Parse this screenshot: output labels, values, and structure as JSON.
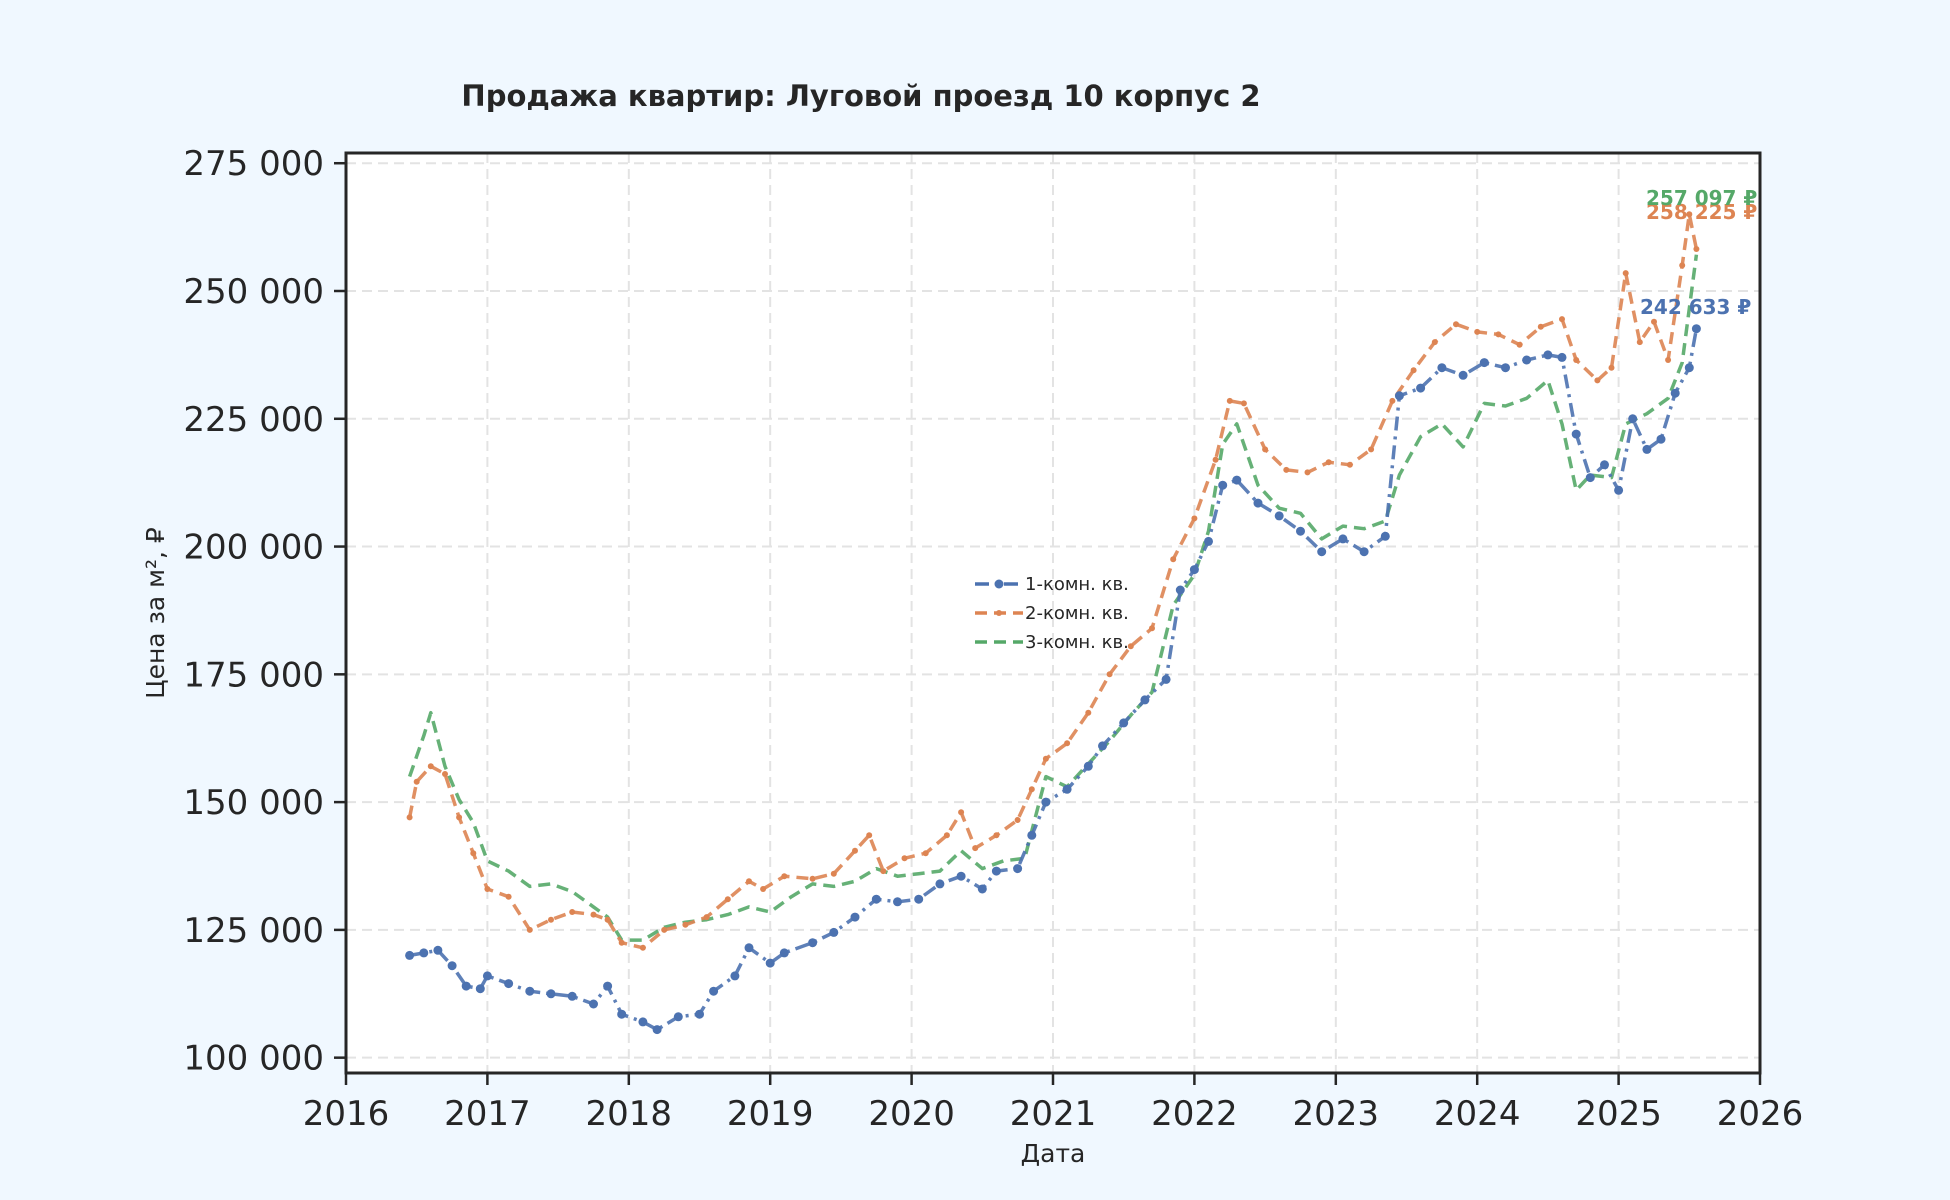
{
  "chart_data": {
    "type": "line",
    "title": "Продажа квартир: Луговой проезд 10 корпус 2",
    "xlabel": "Дата",
    "ylabel": "Цена за м², ₽",
    "xlim": [
      2016,
      2026
    ],
    "ylim": [
      97000,
      277000
    ],
    "x_ticks": [
      2016,
      2017,
      2018,
      2019,
      2020,
      2021,
      2022,
      2023,
      2024,
      2025,
      2026
    ],
    "x_tick_labels": [
      "2016",
      "2017",
      "2018",
      "2019",
      "2020",
      "2021",
      "2022",
      "2023",
      "2024",
      "2025",
      "2026"
    ],
    "y_ticks": [
      100000,
      125000,
      150000,
      175000,
      200000,
      225000,
      250000,
      275000
    ],
    "y_tick_labels": [
      "100 000",
      "125 000",
      "150 000",
      "175 000",
      "200 000",
      "225 000",
      "250 000",
      "275 000"
    ],
    "grid": true,
    "legend_position": "center",
    "series": [
      {
        "name": "1-комн. кв.",
        "color": "#4c72b0",
        "style": "dash-dot",
        "marker": "circle",
        "end_label": "242 633 ₽",
        "points": [
          [
            2016.45,
            120000
          ],
          [
            2016.55,
            120500
          ],
          [
            2016.65,
            121000
          ],
          [
            2016.75,
            118000
          ],
          [
            2016.85,
            114000
          ],
          [
            2016.95,
            113500
          ],
          [
            2017.0,
            116000
          ],
          [
            2017.15,
            114500
          ],
          [
            2017.3,
            113000
          ],
          [
            2017.45,
            112500
          ],
          [
            2017.6,
            112000
          ],
          [
            2017.75,
            110500
          ],
          [
            2017.85,
            114000
          ],
          [
            2017.95,
            108500
          ],
          [
            2018.1,
            107000
          ],
          [
            2018.2,
            105500
          ],
          [
            2018.35,
            108000
          ],
          [
            2018.5,
            108500
          ],
          [
            2018.6,
            113000
          ],
          [
            2018.75,
            116000
          ],
          [
            2018.85,
            121500
          ],
          [
            2019.0,
            118500
          ],
          [
            2019.1,
            120500
          ],
          [
            2019.3,
            122500
          ],
          [
            2019.45,
            124500
          ],
          [
            2019.6,
            127500
          ],
          [
            2019.75,
            131000
          ],
          [
            2019.9,
            130500
          ],
          [
            2020.05,
            131000
          ],
          [
            2020.2,
            134000
          ],
          [
            2020.35,
            135500
          ],
          [
            2020.5,
            133000
          ],
          [
            2020.6,
            136500
          ],
          [
            2020.75,
            137000
          ],
          [
            2020.85,
            143500
          ],
          [
            2020.95,
            150000
          ],
          [
            2021.1,
            152500
          ],
          [
            2021.25,
            157000
          ],
          [
            2021.35,
            161000
          ],
          [
            2021.5,
            165500
          ],
          [
            2021.65,
            170000
          ],
          [
            2021.8,
            174000
          ],
          [
            2021.9,
            191500
          ],
          [
            2022.0,
            195500
          ],
          [
            2022.1,
            201000
          ],
          [
            2022.2,
            212000
          ],
          [
            2022.3,
            213000
          ],
          [
            2022.45,
            208500
          ],
          [
            2022.6,
            206000
          ],
          [
            2022.75,
            203000
          ],
          [
            2022.9,
            199000
          ],
          [
            2023.05,
            201500
          ],
          [
            2023.2,
            199000
          ],
          [
            2023.35,
            202000
          ],
          [
            2023.45,
            229500
          ],
          [
            2023.6,
            231000
          ],
          [
            2023.75,
            235000
          ],
          [
            2023.9,
            233500
          ],
          [
            2024.05,
            236000
          ],
          [
            2024.2,
            235000
          ],
          [
            2024.35,
            236500
          ],
          [
            2024.5,
            237500
          ],
          [
            2024.6,
            237000
          ],
          [
            2024.7,
            222000
          ],
          [
            2024.8,
            213500
          ],
          [
            2024.9,
            216000
          ],
          [
            2025.0,
            211000
          ],
          [
            2025.1,
            225000
          ],
          [
            2025.2,
            219000
          ],
          [
            2025.3,
            221000
          ],
          [
            2025.4,
            230000
          ],
          [
            2025.5,
            235000
          ],
          [
            2025.55,
            242633
          ]
        ]
      },
      {
        "name": "2-комн. кв.",
        "color": "#dd8452",
        "style": "dashed",
        "marker": "small-dot",
        "end_label": "258 225 ₽",
        "points": [
          [
            2016.45,
            147000
          ],
          [
            2016.5,
            154000
          ],
          [
            2016.6,
            157000
          ],
          [
            2016.7,
            155500
          ],
          [
            2016.8,
            147000
          ],
          [
            2016.9,
            140000
          ],
          [
            2017.0,
            133000
          ],
          [
            2017.15,
            131500
          ],
          [
            2017.3,
            125000
          ],
          [
            2017.45,
            127000
          ],
          [
            2017.6,
            128500
          ],
          [
            2017.75,
            128000
          ],
          [
            2017.85,
            127000
          ],
          [
            2017.95,
            122500
          ],
          [
            2018.1,
            121500
          ],
          [
            2018.25,
            125000
          ],
          [
            2018.4,
            126000
          ],
          [
            2018.55,
            127500
          ],
          [
            2018.7,
            131000
          ],
          [
            2018.85,
            134500
          ],
          [
            2018.95,
            133000
          ],
          [
            2019.1,
            135500
          ],
          [
            2019.3,
            135000
          ],
          [
            2019.45,
            136000
          ],
          [
            2019.6,
            140500
          ],
          [
            2019.7,
            143500
          ],
          [
            2019.8,
            136500
          ],
          [
            2019.95,
            139000
          ],
          [
            2020.1,
            140000
          ],
          [
            2020.25,
            143500
          ],
          [
            2020.35,
            148000
          ],
          [
            2020.45,
            141000
          ],
          [
            2020.6,
            143500
          ],
          [
            2020.75,
            146500
          ],
          [
            2020.85,
            152500
          ],
          [
            2020.95,
            158500
          ],
          [
            2021.1,
            161500
          ],
          [
            2021.25,
            167500
          ],
          [
            2021.4,
            175000
          ],
          [
            2021.55,
            180500
          ],
          [
            2021.7,
            184000
          ],
          [
            2021.85,
            197500
          ],
          [
            2022.0,
            205500
          ],
          [
            2022.15,
            217000
          ],
          [
            2022.25,
            228500
          ],
          [
            2022.35,
            228000
          ],
          [
            2022.5,
            219000
          ],
          [
            2022.65,
            215000
          ],
          [
            2022.8,
            214500
          ],
          [
            2022.95,
            216500
          ],
          [
            2023.1,
            216000
          ],
          [
            2023.25,
            219000
          ],
          [
            2023.4,
            228500
          ],
          [
            2023.55,
            234500
          ],
          [
            2023.7,
            240000
          ],
          [
            2023.85,
            243500
          ],
          [
            2024.0,
            242000
          ],
          [
            2024.15,
            241500
          ],
          [
            2024.3,
            239500
          ],
          [
            2024.45,
            243000
          ],
          [
            2024.6,
            244500
          ],
          [
            2024.7,
            236500
          ],
          [
            2024.85,
            232500
          ],
          [
            2024.95,
            235000
          ],
          [
            2025.05,
            253500
          ],
          [
            2025.15,
            240000
          ],
          [
            2025.25,
            244000
          ],
          [
            2025.35,
            236500
          ],
          [
            2025.45,
            255000
          ],
          [
            2025.5,
            265000
          ],
          [
            2025.55,
            258225
          ]
        ]
      },
      {
        "name": "3-комн. кв.",
        "color": "#55a868",
        "style": "dashed",
        "marker": "none",
        "end_label": "257 097 ₽",
        "points": [
          [
            2016.45,
            155000
          ],
          [
            2016.55,
            163000
          ],
          [
            2016.6,
            167500
          ],
          [
            2016.7,
            157000
          ],
          [
            2016.8,
            150500
          ],
          [
            2016.9,
            146000
          ],
          [
            2017.0,
            138500
          ],
          [
            2017.15,
            136500
          ],
          [
            2017.3,
            133500
          ],
          [
            2017.45,
            134000
          ],
          [
            2017.6,
            132500
          ],
          [
            2017.75,
            129500
          ],
          [
            2017.85,
            127500
          ],
          [
            2017.95,
            123000
          ],
          [
            2018.1,
            123000
          ],
          [
            2018.25,
            125500
          ],
          [
            2018.4,
            126500
          ],
          [
            2018.55,
            127000
          ],
          [
            2018.7,
            128000
          ],
          [
            2018.85,
            129500
          ],
          [
            2019.0,
            128500
          ],
          [
            2019.15,
            131500
          ],
          [
            2019.3,
            134000
          ],
          [
            2019.45,
            133500
          ],
          [
            2019.6,
            134500
          ],
          [
            2019.75,
            137000
          ],
          [
            2019.9,
            135500
          ],
          [
            2020.05,
            136000
          ],
          [
            2020.2,
            136500
          ],
          [
            2020.35,
            140500
          ],
          [
            2020.5,
            137000
          ],
          [
            2020.65,
            138500
          ],
          [
            2020.8,
            139000
          ],
          [
            2020.95,
            155000
          ],
          [
            2021.1,
            153000
          ],
          [
            2021.25,
            157500
          ],
          [
            2021.4,
            162000
          ],
          [
            2021.55,
            167000
          ],
          [
            2021.7,
            171500
          ],
          [
            2021.85,
            188500
          ],
          [
            2022.0,
            194500
          ],
          [
            2022.1,
            203000
          ],
          [
            2022.2,
            220000
          ],
          [
            2022.3,
            224000
          ],
          [
            2022.45,
            212000
          ],
          [
            2022.6,
            207500
          ],
          [
            2022.75,
            206500
          ],
          [
            2022.9,
            201500
          ],
          [
            2023.05,
            204000
          ],
          [
            2023.2,
            203500
          ],
          [
            2023.35,
            205000
          ],
          [
            2023.45,
            214000
          ],
          [
            2023.6,
            221500
          ],
          [
            2023.75,
            224000
          ],
          [
            2023.9,
            219500
          ],
          [
            2024.05,
            228000
          ],
          [
            2024.2,
            227500
          ],
          [
            2024.35,
            229000
          ],
          [
            2024.5,
            232500
          ],
          [
            2024.6,
            224000
          ],
          [
            2024.7,
            211000
          ],
          [
            2024.8,
            214000
          ],
          [
            2024.95,
            213500
          ],
          [
            2025.05,
            224000
          ],
          [
            2025.2,
            226000
          ],
          [
            2025.35,
            229000
          ],
          [
            2025.45,
            236000
          ],
          [
            2025.55,
            257097
          ]
        ]
      }
    ]
  }
}
